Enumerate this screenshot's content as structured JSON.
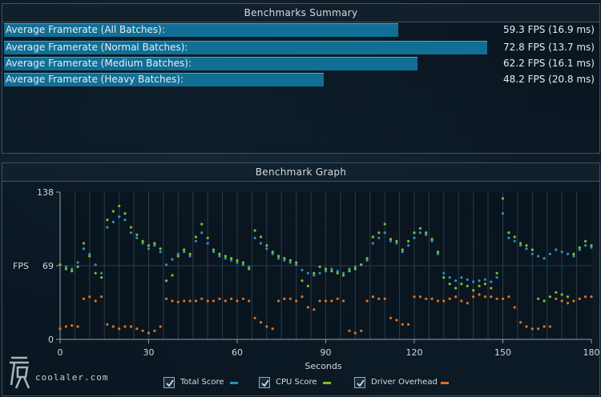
{
  "summary": {
    "title": "Benchmarks Summary",
    "rows": [
      {
        "label": "Average Framerate (All Batches):",
        "value": "59.3 FPS (16.9 ms)",
        "fraction": 0.664
      },
      {
        "label": "Average Framerate (Normal Batches):",
        "value": "72.8 FPS (13.7 ms)",
        "fraction": 0.814
      },
      {
        "label": "Average Framerate (Medium Batches):",
        "value": "62.2 FPS (16.1 ms)",
        "fraction": 0.696
      },
      {
        "label": "Average Framerate (Heavy Batches):",
        "value": "48.2 FPS (20.8 ms)",
        "fraction": 0.539
      }
    ],
    "bar_color": "#116f95"
  },
  "graph": {
    "title": "Benchmark Graph",
    "y_label": "FPS",
    "x_label": "Seconds",
    "y_ticks": [
      "138",
      "69",
      "0"
    ],
    "x_ticks": [
      "0",
      "30",
      "60",
      "90",
      "120",
      "150",
      "180"
    ]
  },
  "legend": [
    {
      "label": "Total Score",
      "color": "#2f8fc0",
      "checked": true
    },
    {
      "label": "CPU Score",
      "color": "#7fbf2a",
      "checked": true
    },
    {
      "label": "Driver Overhead",
      "color": "#e0711f",
      "checked": true
    }
  ],
  "watermark": {
    "text": "coolaler.com"
  },
  "chart_data": {
    "type": "scatter",
    "xlabel": "Seconds",
    "ylabel": "FPS",
    "xlim": [
      0,
      180
    ],
    "ylim": [
      0,
      138
    ],
    "series": [
      {
        "name": "Total Score",
        "color": "#2f8fc0",
        "x": [
          0,
          2,
          4,
          6,
          8,
          10,
          12,
          14,
          16,
          18,
          20,
          22,
          24,
          26,
          28,
          30,
          32,
          34,
          36,
          38,
          40,
          42,
          44,
          46,
          48,
          50,
          52,
          54,
          56,
          58,
          60,
          62,
          64,
          66,
          68,
          70,
          72,
          74,
          76,
          78,
          80,
          82,
          84,
          86,
          88,
          90,
          92,
          94,
          96,
          98,
          100,
          102,
          104,
          106,
          108,
          110,
          112,
          114,
          116,
          118,
          120,
          122,
          124,
          126,
          128,
          130,
          132,
          134,
          136,
          138,
          140,
          142,
          144,
          146,
          148,
          150,
          152,
          154,
          156,
          158,
          160,
          162,
          164,
          166,
          168,
          170,
          172,
          174,
          176,
          178,
          180
        ],
        "y": [
          70,
          68,
          66,
          72,
          85,
          80,
          70,
          62,
          105,
          110,
          115,
          112,
          100,
          95,
          90,
          85,
          88,
          82,
          70,
          75,
          80,
          82,
          78,
          92,
          100,
          90,
          82,
          78,
          76,
          74,
          72,
          70,
          68,
          95,
          90,
          85,
          80,
          76,
          74,
          72,
          70,
          65,
          62,
          60,
          62,
          64,
          66,
          64,
          62,
          66,
          68,
          70,
          74,
          90,
          95,
          100,
          92,
          90,
          82,
          88,
          95,
          100,
          98,
          92,
          80,
          62,
          58,
          55,
          58,
          56,
          54,
          55,
          56,
          54,
          58,
          118,
          95,
          92,
          88,
          85,
          80,
          78,
          76,
          80,
          84,
          82,
          80,
          78,
          84,
          88,
          86
        ]
      },
      {
        "name": "CPU Score",
        "color": "#7fbf2a",
        "x": [
          0,
          2,
          4,
          6,
          8,
          10,
          12,
          14,
          16,
          18,
          20,
          22,
          24,
          26,
          28,
          30,
          32,
          34,
          36,
          38,
          40,
          42,
          44,
          46,
          48,
          50,
          52,
          54,
          56,
          58,
          60,
          62,
          64,
          66,
          68,
          70,
          72,
          74,
          76,
          78,
          80,
          82,
          84,
          86,
          88,
          90,
          92,
          94,
          96,
          98,
          100,
          102,
          104,
          106,
          108,
          110,
          112,
          114,
          116,
          118,
          120,
          122,
          124,
          126,
          128,
          130,
          132,
          134,
          136,
          138,
          140,
          142,
          144,
          146,
          148,
          150,
          152,
          154,
          156,
          158,
          160,
          162,
          164,
          166,
          168,
          170,
          172,
          174,
          176,
          178,
          180
        ],
        "y": [
          70,
          66,
          64,
          68,
          90,
          78,
          62,
          58,
          112,
          120,
          125,
          118,
          105,
          98,
          92,
          88,
          90,
          85,
          55,
          60,
          78,
          84,
          80,
          96,
          108,
          95,
          84,
          80,
          78,
          76,
          74,
          72,
          66,
          102,
          96,
          88,
          82,
          78,
          76,
          74,
          72,
          55,
          50,
          62,
          68,
          66,
          64,
          62,
          60,
          64,
          66,
          70,
          76,
          96,
          100,
          108,
          94,
          92,
          84,
          92,
          100,
          104,
          100,
          94,
          82,
          58,
          52,
          48,
          52,
          50,
          46,
          50,
          52,
          48,
          62,
          132,
          100,
          96,
          90,
          88,
          84,
          38,
          36,
          40,
          44,
          42,
          40,
          80,
          86,
          92,
          88
        ]
      },
      {
        "name": "Driver Overhead",
        "color": "#e0711f",
        "x": [
          0,
          2,
          4,
          6,
          8,
          10,
          12,
          14,
          16,
          18,
          20,
          22,
          24,
          26,
          28,
          30,
          32,
          34,
          36,
          38,
          40,
          42,
          44,
          46,
          48,
          50,
          52,
          54,
          56,
          58,
          60,
          62,
          64,
          66,
          68,
          70,
          72,
          74,
          76,
          78,
          80,
          82,
          84,
          86,
          88,
          90,
          92,
          94,
          96,
          98,
          100,
          102,
          104,
          106,
          108,
          110,
          112,
          114,
          116,
          118,
          120,
          122,
          124,
          126,
          128,
          130,
          132,
          134,
          136,
          138,
          140,
          142,
          144,
          146,
          148,
          150,
          152,
          154,
          156,
          158,
          160,
          162,
          164,
          166,
          168,
          170,
          172,
          174,
          176,
          178,
          180
        ],
        "y": [
          10,
          12,
          13,
          12,
          38,
          40,
          36,
          40,
          14,
          12,
          10,
          12,
          12,
          10,
          8,
          6,
          8,
          12,
          38,
          36,
          35,
          36,
          36,
          36,
          38,
          36,
          36,
          38,
          36,
          38,
          36,
          38,
          36,
          20,
          16,
          12,
          10,
          36,
          38,
          38,
          36,
          40,
          30,
          28,
          36,
          36,
          36,
          38,
          36,
          8,
          6,
          8,
          36,
          40,
          38,
          38,
          20,
          18,
          14,
          14,
          40,
          40,
          38,
          38,
          36,
          36,
          38,
          40,
          36,
          34,
          40,
          42,
          40,
          40,
          38,
          38,
          40,
          30,
          16,
          12,
          10,
          10,
          12,
          12,
          38,
          36,
          34,
          36,
          38,
          40,
          40
        ]
      }
    ]
  }
}
